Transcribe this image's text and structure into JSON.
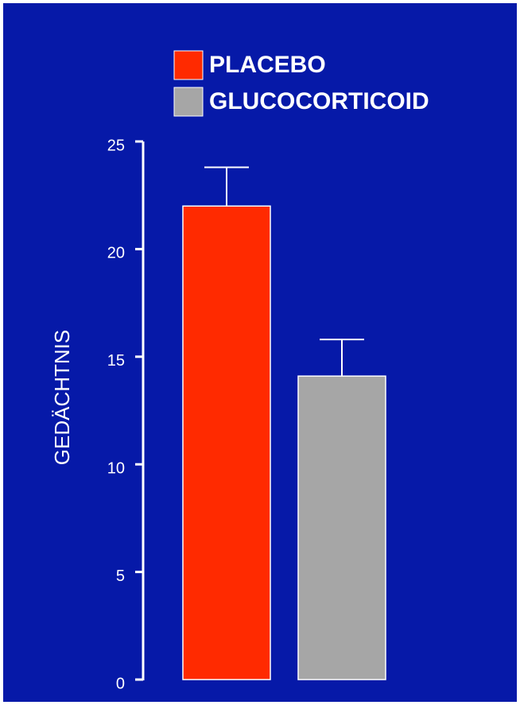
{
  "chart_data": {
    "type": "bar",
    "ylabel": "GEDÄCHTNIS",
    "categories": [
      null
    ],
    "series": [
      {
        "name": "PLACEBO",
        "color": "#ff2a00",
        "values": [
          22
        ],
        "errors": [
          1.8
        ]
      },
      {
        "name": "GLUCOCORTICOID",
        "color": "#a6a6a6",
        "values": [
          14.1
        ],
        "errors": [
          1.7
        ]
      }
    ],
    "ylim": [
      0,
      25
    ],
    "yticks": [
      0,
      5,
      10,
      15,
      20,
      25
    ],
    "grid": false,
    "legend": "top"
  }
}
